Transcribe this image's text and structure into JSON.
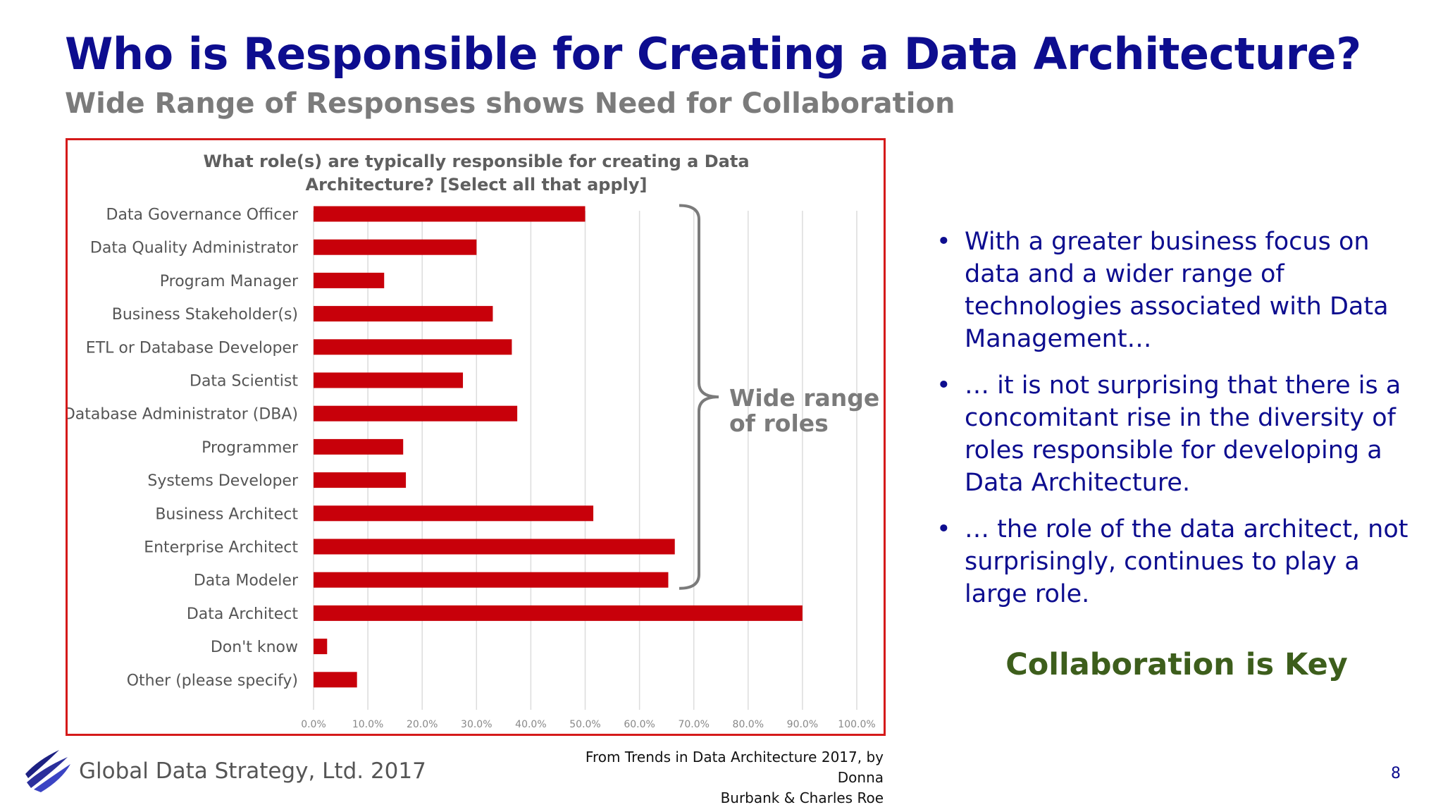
{
  "slide": {
    "title": "Who is Responsible for Creating a Data Architecture?",
    "subtitle": "Wide Range of Responses shows Need for Collaboration",
    "bullets": [
      "With a greater business focus on data and a wider range of technologies associated with Data Management…",
      "… it is not surprising that there is a concomitant rise in the diversity of roles responsible for developing a Data Architecture.",
      "… the role of the data architect, not surprisingly, continues to play a large role."
    ],
    "key_message": "Collaboration is Key",
    "footer_company": "Global Data Strategy, Ltd. 2017",
    "source_line1": "From Trends in Data Architecture 2017, by Donna",
    "source_line2": "Burbank & Charles Roe",
    "page_number": "8",
    "bullet_glyph": "•"
  },
  "colors": {
    "title": "#0d0d8f",
    "subtitle": "#7b7b7b",
    "bar": "#c8000a",
    "frame": "#d51a1a",
    "key_message": "#3d5e1c",
    "bracket": "#7b7b7b"
  },
  "chart_data": {
    "type": "bar",
    "orientation": "horizontal",
    "title_line1": "What role(s) are typically responsible  for creating  a Data",
    "title_line2": "Architecture?  [Select all that apply]",
    "categories": [
      "Data Governance Officer",
      "Data Quality Administrator",
      "Program Manager",
      "Business Stakeholder(s)",
      "ETL or Database Developer",
      "Data Scientist",
      "Database Administrator (DBA)",
      "Programmer",
      "Systems Developer",
      "Business Architect",
      "Enterprise Architect",
      "Data Modeler",
      "Data Architect",
      "Don't know",
      "Other (please specify)"
    ],
    "values": [
      50.0,
      30.0,
      13.0,
      33.0,
      36.5,
      27.5,
      37.5,
      16.5,
      17.0,
      51.5,
      66.5,
      65.3,
      90.0,
      2.5,
      8.0
    ],
    "xlim": [
      0,
      100
    ],
    "ticks": [
      "0.0%",
      "10.0%",
      "20.0%",
      "30.0%",
      "40.0%",
      "50.0%",
      "60.0%",
      "70.0%",
      "80.0%",
      "90.0%",
      "100.0%"
    ],
    "grid": true,
    "legend": false,
    "annotation_line1": "Wide range",
    "annotation_line2": "of roles",
    "bracket_span": [
      "Data Governance Officer",
      "Data Modeler"
    ]
  }
}
